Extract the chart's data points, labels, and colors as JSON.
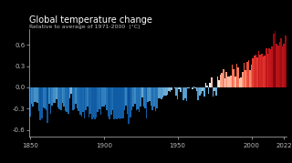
{
  "title": "Global temperature change",
  "subtitle": "Relative to average of 1971-2000  (°C)",
  "xlim": [
    1849.5,
    2023.5
  ],
  "ylim": [
    -0.7,
    0.82
  ],
  "yticks": [
    -0.6,
    -0.3,
    0.0,
    0.3,
    0.6
  ],
  "xticks": [
    1850,
    1900,
    1950,
    2000,
    2022
  ],
  "background_color": "#000000",
  "text_color": "#bbbbbb",
  "bar_width": 1.0,
  "vmin": -0.7,
  "vmax": 0.85,
  "years": [
    1850,
    1851,
    1852,
    1853,
    1854,
    1855,
    1856,
    1857,
    1858,
    1859,
    1860,
    1861,
    1862,
    1863,
    1864,
    1865,
    1866,
    1867,
    1868,
    1869,
    1870,
    1871,
    1872,
    1873,
    1874,
    1875,
    1876,
    1877,
    1878,
    1879,
    1880,
    1881,
    1882,
    1883,
    1884,
    1885,
    1886,
    1887,
    1888,
    1889,
    1890,
    1891,
    1892,
    1893,
    1894,
    1895,
    1896,
    1897,
    1898,
    1899,
    1900,
    1901,
    1902,
    1903,
    1904,
    1905,
    1906,
    1907,
    1908,
    1909,
    1910,
    1911,
    1912,
    1913,
    1914,
    1915,
    1916,
    1917,
    1918,
    1919,
    1920,
    1921,
    1922,
    1923,
    1924,
    1925,
    1926,
    1927,
    1928,
    1929,
    1930,
    1931,
    1932,
    1933,
    1934,
    1935,
    1936,
    1937,
    1938,
    1939,
    1940,
    1941,
    1942,
    1943,
    1944,
    1945,
    1946,
    1947,
    1948,
    1949,
    1950,
    1951,
    1952,
    1953,
    1954,
    1955,
    1956,
    1957,
    1958,
    1959,
    1960,
    1961,
    1962,
    1963,
    1964,
    1965,
    1966,
    1967,
    1968,
    1969,
    1970,
    1971,
    1972,
    1973,
    1974,
    1975,
    1976,
    1977,
    1978,
    1979,
    1980,
    1981,
    1982,
    1983,
    1984,
    1985,
    1986,
    1987,
    1988,
    1989,
    1990,
    1991,
    1992,
    1993,
    1994,
    1995,
    1996,
    1997,
    1998,
    1999,
    2000,
    2001,
    2002,
    2003,
    2004,
    2005,
    2006,
    2007,
    2008,
    2009,
    2010,
    2011,
    2012,
    2013,
    2014,
    2015,
    2016,
    2017,
    2018,
    2019,
    2020,
    2021,
    2022,
    2023
  ],
  "values": [
    -0.416,
    -0.229,
    -0.27,
    -0.209,
    -0.208,
    -0.217,
    -0.33,
    -0.461,
    -0.437,
    -0.287,
    -0.293,
    -0.322,
    -0.496,
    -0.237,
    -0.375,
    -0.261,
    -0.215,
    -0.213,
    -0.171,
    -0.285,
    -0.307,
    -0.326,
    -0.222,
    -0.266,
    -0.331,
    -0.347,
    -0.373,
    -0.155,
    -0.09,
    -0.318,
    -0.305,
    -0.238,
    -0.291,
    -0.338,
    -0.383,
    -0.407,
    -0.352,
    -0.434,
    -0.32,
    -0.275,
    -0.422,
    -0.368,
    -0.45,
    -0.424,
    -0.448,
    -0.424,
    -0.348,
    -0.305,
    -0.391,
    -0.266,
    -0.275,
    -0.24,
    -0.32,
    -0.407,
    -0.449,
    -0.381,
    -0.318,
    -0.45,
    -0.443,
    -0.449,
    -0.433,
    -0.452,
    -0.436,
    -0.432,
    -0.328,
    -0.258,
    -0.38,
    -0.519,
    -0.43,
    -0.319,
    -0.27,
    -0.228,
    -0.321,
    -0.307,
    -0.344,
    -0.272,
    -0.136,
    -0.269,
    -0.302,
    -0.432,
    -0.212,
    -0.196,
    -0.255,
    -0.322,
    -0.275,
    -0.33,
    -0.295,
    -0.16,
    -0.154,
    -0.173,
    -0.139,
    -0.12,
    -0.111,
    -0.107,
    -0.057,
    -0.069,
    -0.041,
    -0.004,
    -0.016,
    -0.119,
    -0.168,
    -0.021,
    -0.063,
    -0.003,
    -0.175,
    -0.154,
    -0.189,
    -0.019,
    -0.016,
    -0.001,
    -0.031,
    0.01,
    -0.014,
    -0.054,
    -0.18,
    -0.122,
    -0.089,
    -0.056,
    -0.125,
    0.065,
    0.023,
    -0.085,
    0.068,
    0.141,
    -0.126,
    -0.054,
    -0.111,
    0.153,
    0.1,
    0.178,
    0.207,
    0.257,
    0.123,
    0.214,
    0.158,
    0.151,
    0.17,
    0.32,
    0.26,
    0.148,
    0.34,
    0.278,
    0.131,
    0.145,
    0.215,
    0.343,
    0.247,
    0.366,
    0.385,
    0.249,
    0.322,
    0.407,
    0.455,
    0.468,
    0.424,
    0.508,
    0.465,
    0.478,
    0.434,
    0.446,
    0.553,
    0.48,
    0.549,
    0.542,
    0.578,
    0.762,
    0.799,
    0.619,
    0.594,
    0.645,
    0.7,
    0.579,
    0.612,
    0.728
  ]
}
